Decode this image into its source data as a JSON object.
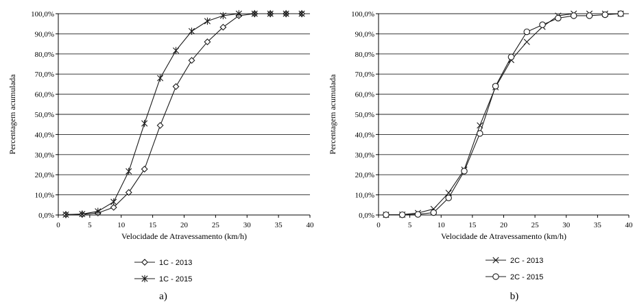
{
  "chart_data": [
    {
      "type": "line",
      "panel_label": "a)",
      "xlabel": "Velocidade de Atravessamento (km/h)",
      "ylabel": "Percentagem acumulada",
      "xlim": [
        0,
        40
      ],
      "ylim": [
        0,
        100
      ],
      "x_ticks": [
        "0",
        "5",
        "10",
        "15",
        "20",
        "25",
        "30",
        "35",
        "40"
      ],
      "y_ticks": [
        "0,0%",
        "10,0%",
        "20,0%",
        "30,0%",
        "40,0%",
        "50,0%",
        "60,0%",
        "70,0%",
        "80,0%",
        "90,0%",
        "100,0%"
      ],
      "grid": "horizontal",
      "legend": "bottom",
      "series": [
        {
          "name": "1C - 2013",
          "marker": "diamond",
          "x": [
            1.2,
            3.8,
            6.3,
            8.8,
            11.2,
            13.7,
            16.2,
            18.7,
            21.2,
            23.7,
            26.2,
            28.7,
            31.2,
            33.7,
            36.2,
            38.7
          ],
          "values": [
            0.2,
            0.3,
            1.0,
            3.8,
            11.2,
            22.8,
            44.5,
            63.8,
            76.8,
            86.0,
            93.3,
            99.0,
            100,
            100,
            100,
            100
          ]
        },
        {
          "name": "1C - 2015",
          "marker": "asterisk",
          "x": [
            1.2,
            3.8,
            6.3,
            8.8,
            11.2,
            13.7,
            16.2,
            18.7,
            21.2,
            23.7,
            26.2,
            28.7,
            31.2,
            33.7,
            36.2,
            38.7
          ],
          "values": [
            0.2,
            0.5,
            1.8,
            6.5,
            21.7,
            45.5,
            68.0,
            81.7,
            91.3,
            96.3,
            99.0,
            100,
            100,
            100,
            100,
            100
          ]
        }
      ]
    },
    {
      "type": "line",
      "panel_label": "b)",
      "xlabel": "Velocidade de Atravessamento (km/h)",
      "ylabel": "Percentagem acumulada",
      "xlim": [
        0,
        40
      ],
      "ylim": [
        0,
        100
      ],
      "x_ticks": [
        "0",
        "5",
        "10",
        "15",
        "20",
        "25",
        "30",
        "35",
        "40"
      ],
      "y_ticks": [
        "0,0%",
        "10,0%",
        "20,0%",
        "30,0%",
        "40,0%",
        "50,0%",
        "60,0%",
        "70,0%",
        "80,0%",
        "90,0%",
        "100,0%"
      ],
      "grid": "horizontal",
      "legend": "bottom",
      "series": [
        {
          "name": "2C - 2013",
          "marker": "x",
          "x": [
            1.2,
            3.8,
            6.3,
            8.8,
            11.2,
            13.7,
            16.2,
            18.7,
            21.2,
            23.7,
            26.2,
            28.7,
            31.2,
            33.7,
            36.2,
            38.7
          ],
          "values": [
            0.1,
            0.2,
            1.0,
            3.0,
            11.0,
            22.5,
            44.5,
            63.5,
            77.0,
            86.0,
            93.5,
            99.0,
            100,
            100,
            100,
            100
          ]
        },
        {
          "name": "2C - 2015",
          "marker": "circle",
          "x": [
            1.2,
            3.8,
            6.3,
            8.8,
            11.2,
            13.7,
            16.2,
            18.7,
            21.2,
            23.7,
            26.2,
            28.7,
            31.2,
            33.7,
            36.2,
            38.7
          ],
          "values": [
            0.1,
            0.1,
            0.3,
            1.2,
            8.5,
            21.8,
            40.5,
            64.0,
            78.5,
            91.0,
            94.5,
            97.8,
            99.0,
            99.0,
            99.5,
            100
          ]
        }
      ]
    }
  ]
}
